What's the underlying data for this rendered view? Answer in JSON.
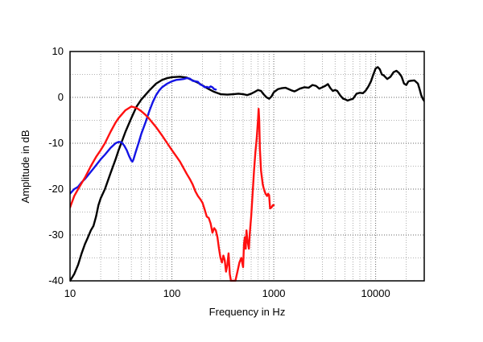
{
  "chart_data": {
    "type": "line",
    "xlabel": "Frequency in Hz",
    "ylabel": "Amplitude in dB",
    "x_scale": "log",
    "xlim": [
      10,
      30000
    ],
    "ylim": [
      -40,
      10
    ],
    "grid": true,
    "x_ticks": [
      {
        "value": 10,
        "label": "10"
      },
      {
        "value": 100,
        "label": "100"
      },
      {
        "value": 1000,
        "label": "1000"
      },
      {
        "value": 10000,
        "label": "10000"
      }
    ],
    "y_ticks": [
      {
        "value": 10,
        "label": "10"
      },
      {
        "value": 0,
        "label": "0"
      },
      {
        "value": -10,
        "label": "-10"
      },
      {
        "value": -20,
        "label": "-20"
      },
      {
        "value": -30,
        "label": "-30"
      },
      {
        "value": -40,
        "label": "-40"
      }
    ],
    "series": [
      {
        "color": "#000000",
        "points": [
          [
            10,
            -40
          ],
          [
            11,
            -38.5
          ],
          [
            12,
            -36.5
          ],
          [
            13,
            -34
          ],
          [
            14,
            -32
          ],
          [
            15,
            -30.5
          ],
          [
            16,
            -29
          ],
          [
            17,
            -28
          ],
          [
            18,
            -26
          ],
          [
            19,
            -23.5
          ],
          [
            20,
            -22
          ],
          [
            22,
            -20
          ],
          [
            25,
            -16.5
          ],
          [
            28,
            -13.5
          ],
          [
            30,
            -11.5
          ],
          [
            35,
            -7.5
          ],
          [
            40,
            -4.5
          ],
          [
            45,
            -2
          ],
          [
            50,
            -0.5
          ],
          [
            60,
            1.5
          ],
          [
            70,
            3
          ],
          [
            80,
            3.8
          ],
          [
            90,
            4.2
          ],
          [
            100,
            4.4
          ],
          [
            120,
            4.5
          ],
          [
            140,
            4.3
          ],
          [
            160,
            3.7
          ],
          [
            180,
            3.2
          ],
          [
            200,
            2.6
          ],
          [
            230,
            1.8
          ],
          [
            260,
            1.2
          ],
          [
            300,
            0.7
          ],
          [
            350,
            0.6
          ],
          [
            400,
            0.7
          ],
          [
            450,
            0.8
          ],
          [
            500,
            0.7
          ],
          [
            550,
            0.5
          ],
          [
            600,
            0.8
          ],
          [
            650,
            1.2
          ],
          [
            700,
            1.6
          ],
          [
            750,
            1.4
          ],
          [
            800,
            0.6
          ],
          [
            850,
            0
          ],
          [
            900,
            -0.3
          ],
          [
            950,
            0.2
          ],
          [
            1000,
            1.1
          ],
          [
            1100,
            1.8
          ],
          [
            1200,
            2
          ],
          [
            1300,
            2.1
          ],
          [
            1400,
            1.8
          ],
          [
            1500,
            1.5
          ],
          [
            1600,
            1.3
          ],
          [
            1700,
            1.6
          ],
          [
            1800,
            1.9
          ],
          [
            2000,
            2.2
          ],
          [
            2200,
            2.1
          ],
          [
            2400,
            2.7
          ],
          [
            2600,
            2.5
          ],
          [
            2800,
            1.9
          ],
          [
            3000,
            2.2
          ],
          [
            3200,
            2.5
          ],
          [
            3400,
            2.9
          ],
          [
            3600,
            2
          ],
          [
            3800,
            1.4
          ],
          [
            4000,
            1.6
          ],
          [
            4200,
            1.4
          ],
          [
            4500,
            0.4
          ],
          [
            4800,
            -0.3
          ],
          [
            5000,
            -0.4
          ],
          [
            5300,
            -0.7
          ],
          [
            5600,
            -0.5
          ],
          [
            6000,
            -0.3
          ],
          [
            6500,
            0.8
          ],
          [
            7000,
            1
          ],
          [
            7500,
            0.9
          ],
          [
            8000,
            1.5
          ],
          [
            8500,
            2.4
          ],
          [
            9000,
            3.5
          ],
          [
            9500,
            5
          ],
          [
            10000,
            6.3
          ],
          [
            10500,
            6.6
          ],
          [
            11000,
            6.1
          ],
          [
            11500,
            5
          ],
          [
            12000,
            4.8
          ],
          [
            13000,
            4
          ],
          [
            14000,
            4.5
          ],
          [
            15000,
            5.5
          ],
          [
            16000,
            5.8
          ],
          [
            17000,
            5.3
          ],
          [
            18000,
            4.5
          ],
          [
            19000,
            3
          ],
          [
            20000,
            2.7
          ],
          [
            21000,
            3.5
          ],
          [
            22000,
            3.6
          ],
          [
            24000,
            3.7
          ],
          [
            26000,
            3
          ],
          [
            27000,
            1.8
          ],
          [
            28000,
            0.5
          ],
          [
            29000,
            -0.3
          ],
          [
            30000,
            -0.8
          ]
        ]
      },
      {
        "color": "#1414e6",
        "points": [
          [
            10,
            -21
          ],
          [
            11,
            -20
          ],
          [
            12,
            -19.5
          ],
          [
            13,
            -18.5
          ],
          [
            14,
            -17.8
          ],
          [
            15,
            -17
          ],
          [
            17,
            -15.5
          ],
          [
            20,
            -13.5
          ],
          [
            22,
            -12.5
          ],
          [
            25,
            -11
          ],
          [
            28,
            -10
          ],
          [
            30,
            -9.7
          ],
          [
            32,
            -9.8
          ],
          [
            34,
            -10.5
          ],
          [
            36,
            -11.5
          ],
          [
            38,
            -12.8
          ],
          [
            40,
            -13.8
          ],
          [
            41,
            -14
          ],
          [
            42,
            -13.5
          ],
          [
            44,
            -12
          ],
          [
            47,
            -10
          ],
          [
            50,
            -8
          ],
          [
            55,
            -5.5
          ],
          [
            60,
            -3
          ],
          [
            65,
            -1
          ],
          [
            70,
            0.5
          ],
          [
            75,
            1.5
          ],
          [
            80,
            2.2
          ],
          [
            90,
            3
          ],
          [
            100,
            3.5
          ],
          [
            110,
            3.8
          ],
          [
            120,
            3.9
          ],
          [
            130,
            4
          ],
          [
            140,
            4.2
          ],
          [
            150,
            4.1
          ],
          [
            160,
            3.6
          ],
          [
            170,
            3.5
          ],
          [
            180,
            3.4
          ],
          [
            190,
            2.8
          ],
          [
            200,
            2.6
          ],
          [
            210,
            2.2
          ],
          [
            220,
            2.3
          ],
          [
            230,
            2.1
          ],
          [
            240,
            2.4
          ],
          [
            250,
            2.2
          ],
          [
            260,
            1.8
          ],
          [
            270,
            1.7
          ]
        ]
      },
      {
        "color": "#ff1010",
        "points": [
          [
            10,
            -24
          ],
          [
            11,
            -21.5
          ],
          [
            12,
            -20
          ],
          [
            14,
            -17.5
          ],
          [
            16,
            -15
          ],
          [
            18,
            -13
          ],
          [
            20,
            -11.5
          ],
          [
            22,
            -10
          ],
          [
            25,
            -7.5
          ],
          [
            28,
            -5.5
          ],
          [
            30,
            -4.5
          ],
          [
            35,
            -2.8
          ],
          [
            40,
            -2
          ],
          [
            45,
            -2.3
          ],
          [
            50,
            -3
          ],
          [
            55,
            -3.8
          ],
          [
            60,
            -4.7
          ],
          [
            70,
            -6.5
          ],
          [
            80,
            -8.3
          ],
          [
            90,
            -10
          ],
          [
            100,
            -11.5
          ],
          [
            110,
            -12.8
          ],
          [
            120,
            -14
          ],
          [
            130,
            -15.4
          ],
          [
            140,
            -16.7
          ],
          [
            150,
            -17.8
          ],
          [
            160,
            -19
          ],
          [
            170,
            -20.5
          ],
          [
            180,
            -21.5
          ],
          [
            190,
            -22.2
          ],
          [
            200,
            -23
          ],
          [
            210,
            -24.5
          ],
          [
            220,
            -26
          ],
          [
            230,
            -26.3
          ],
          [
            240,
            -27.5
          ],
          [
            250,
            -29.5
          ],
          [
            260,
            -28.5
          ],
          [
            270,
            -29
          ],
          [
            280,
            -30.5
          ],
          [
            290,
            -33
          ],
          [
            300,
            -35
          ],
          [
            310,
            -36
          ],
          [
            320,
            -34.5
          ],
          [
            330,
            -35.5
          ],
          [
            340,
            -38
          ],
          [
            350,
            -36.5
          ],
          [
            360,
            -34
          ],
          [
            370,
            -38.5
          ],
          [
            380,
            -40
          ],
          [
            420,
            -40
          ],
          [
            440,
            -38
          ],
          [
            460,
            -36
          ],
          [
            480,
            -35
          ],
          [
            500,
            -37
          ],
          [
            510,
            -32
          ],
          [
            520,
            -30.5
          ],
          [
            530,
            -33
          ],
          [
            540,
            -29
          ],
          [
            550,
            -31
          ],
          [
            560,
            -32
          ],
          [
            570,
            -33
          ],
          [
            580,
            -30
          ],
          [
            600,
            -26
          ],
          [
            620,
            -21
          ],
          [
            640,
            -16
          ],
          [
            660,
            -12
          ],
          [
            680,
            -9
          ],
          [
            700,
            -5
          ],
          [
            710,
            -2.5
          ],
          [
            720,
            -5
          ],
          [
            730,
            -11
          ],
          [
            750,
            -16
          ],
          [
            780,
            -19
          ],
          [
            800,
            -20
          ],
          [
            830,
            -21
          ],
          [
            860,
            -21.5
          ],
          [
            880,
            -21
          ],
          [
            900,
            -21.3
          ],
          [
            920,
            -24.2
          ],
          [
            950,
            -24
          ],
          [
            980,
            -23.5
          ],
          [
            1000,
            -23.5
          ]
        ]
      }
    ]
  }
}
